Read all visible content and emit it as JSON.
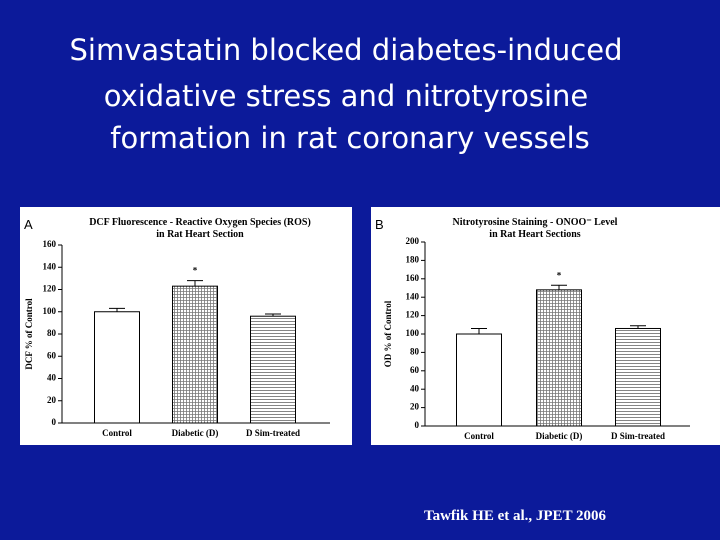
{
  "header": {
    "title_lines": [
      "Simvastatin blocked diabetes-induced",
      "oxidative stress and nitrotyrosine",
      "formation in rat coronary vessels"
    ]
  },
  "citation": "Tawfik HE et al., JPET 2006",
  "chart_data": [
    {
      "type": "bar",
      "panel": "A",
      "title": [
        "DCF Fluorescence - Reactive Oxygen Species (ROS)",
        "in Rat Heart Section"
      ],
      "ylabel": "DCF % of Control",
      "categories": [
        "Control",
        "Diabetic (D)",
        "D Sim-treated"
      ],
      "values": [
        100,
        123,
        96
      ],
      "errors": [
        3,
        5,
        2
      ],
      "significance": [
        null,
        "*",
        null
      ],
      "patterns": [
        "none",
        "grid",
        "hlines"
      ],
      "ylim": [
        0,
        160
      ],
      "yticks": [
        0,
        20,
        40,
        60,
        80,
        100,
        120,
        140,
        160
      ]
    },
    {
      "type": "bar",
      "panel": "B",
      "title": [
        "Nitrotyrosine Staining - ONOO⁻ Level",
        "in Rat Heart Sections"
      ],
      "ylabel": "OD % of Control",
      "categories": [
        "Control",
        "Diabetic (D)",
        "D Sim-treated"
      ],
      "values": [
        100,
        148,
        106
      ],
      "errors": [
        6,
        5,
        3
      ],
      "significance": [
        null,
        "*",
        null
      ],
      "patterns": [
        "none",
        "grid",
        "hlines"
      ],
      "ylim": [
        0,
        200
      ],
      "yticks": [
        0,
        20,
        40,
        60,
        80,
        100,
        120,
        140,
        160,
        180,
        200
      ]
    }
  ]
}
